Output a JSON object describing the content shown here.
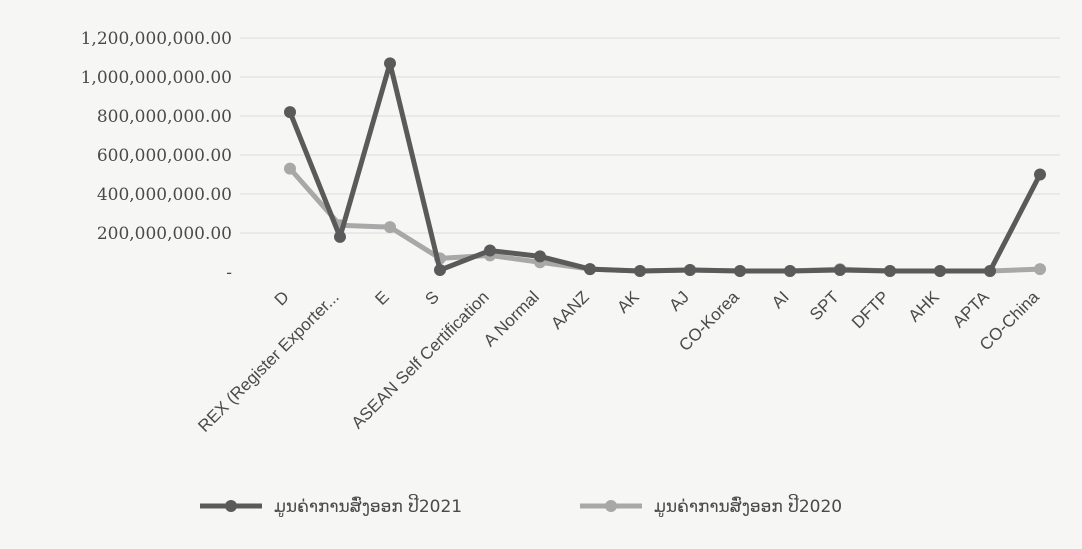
{
  "chart_data": {
    "type": "line",
    "title": "",
    "xlabel": "",
    "ylabel": "",
    "categories": [
      "D",
      "REX (Register Exporter...",
      "E",
      "S",
      "ASEAN Self Certification",
      "A Normal",
      "AANZ",
      "AK",
      "AJ",
      "CO-Korea",
      "AI",
      "SPT",
      "DFTP",
      "AHK",
      "APTA",
      "CO-China"
    ],
    "series": [
      {
        "name": "ມູນຄ່າການສົ່ງອອກ ປີ2021",
        "color": "#5a5a5a",
        "values": [
          820000000,
          180000000,
          1070000000,
          10000000,
          110000000,
          80000000,
          15000000,
          5000000,
          10000000,
          5000000,
          5000000,
          10000000,
          5000000,
          5000000,
          5000000,
          500000000
        ]
      },
      {
        "name": "ມູນຄ່າການສົ່ງອອກ ປີ2020",
        "color": "#a8a8a8",
        "values": [
          530000000,
          240000000,
          230000000,
          70000000,
          85000000,
          50000000,
          15000000,
          5000000,
          10000000,
          5000000,
          5000000,
          15000000,
          5000000,
          5000000,
          5000000,
          15000000
        ]
      }
    ],
    "y_ticks": [
      "1,200,000,000.00",
      "1,000,000,000.00",
      "800,000,000.00",
      "600,000,000.00",
      "400,000,000.00",
      "200,000,000.00",
      "-"
    ],
    "ylim": [
      0,
      1200000000
    ],
    "grid": true,
    "legend_position": "bottom"
  }
}
